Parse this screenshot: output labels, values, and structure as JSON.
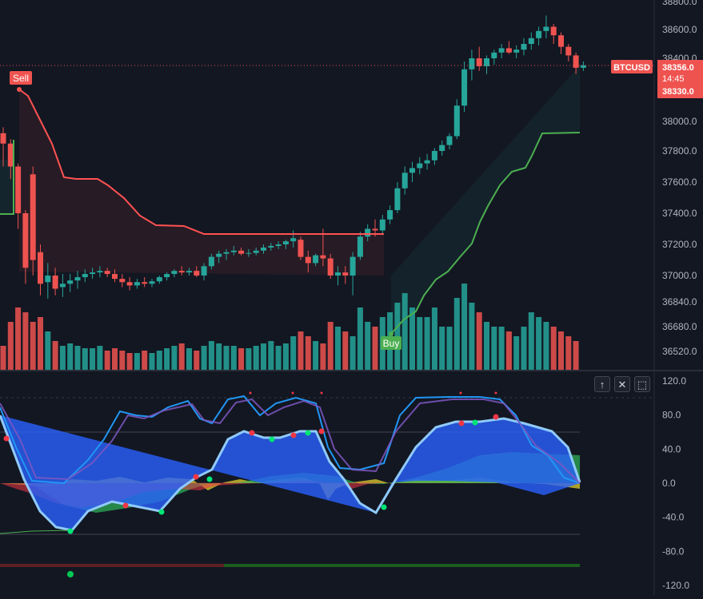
{
  "colors": {
    "background": "#131722",
    "grid": "#1e222d",
    "bull": "#26a69a",
    "bear": "#ef5350",
    "trail_down": "#ff5252",
    "trail_up": "#4caf50",
    "axis_text": "#b2b5be",
    "ind_blue": "#2962ff",
    "ind_light_blue": "#90caf9",
    "ind_purple": "#7e57c2",
    "ind_yellow": "#c9b92c",
    "ind_green": "#43d06a",
    "ind_red": "#f23645"
  },
  "price_axis": {
    "labels": [
      "38800.0",
      "38600.0",
      "38400.0",
      "38000.0",
      "37800.0",
      "37600.0",
      "37400.0",
      "37200.0",
      "37000.0",
      "36840.0",
      "36680.0",
      "36520.0"
    ],
    "values": [
      38800,
      38600,
      38400,
      38000,
      37800,
      37600,
      37400,
      37200,
      37000,
      36840,
      36680,
      36520
    ]
  },
  "indicator_axis": {
    "labels": [
      "120.0",
      "80.0",
      "40.0",
      "0.0",
      "-40.0",
      "-80.0",
      "-120.0"
    ],
    "values": [
      120,
      80,
      40,
      0,
      -40,
      -80,
      -120
    ]
  },
  "symbol_tag": "BTCUSD",
  "last_price": "38356.0",
  "countdown": "14:45",
  "secondary_price": "38330.0",
  "signals": {
    "sell": "Sell",
    "buy": "Buy"
  },
  "pane_buttons": {
    "up": "↑",
    "close": "✕",
    "maximize": "⬚"
  },
  "chart_data": {
    "type": "candlestick",
    "candles": [
      [
        37920,
        37960,
        37700,
        37850
      ],
      [
        37850,
        37880,
        37620,
        37700
      ],
      [
        37700,
        37720,
        37300,
        37400
      ],
      [
        37400,
        37420,
        36950,
        37050
      ],
      [
        37650,
        37700,
        37000,
        37100
      ],
      [
        37150,
        37200,
        36880,
        36950
      ],
      [
        36960,
        37080,
        36860,
        37000
      ],
      [
        37000,
        37050,
        36880,
        36920
      ],
      [
        36930,
        37010,
        36870,
        36950
      ],
      [
        36950,
        37010,
        36900,
        36970
      ],
      [
        36970,
        37030,
        36920,
        36990
      ],
      [
        36990,
        37040,
        36960,
        37010
      ],
      [
        37010,
        37050,
        36980,
        37020
      ],
      [
        37020,
        37060,
        36990,
        37030
      ],
      [
        37030,
        37050,
        36990,
        37010
      ],
      [
        37010,
        37040,
        36960,
        36980
      ],
      [
        36980,
        37010,
        36930,
        36960
      ],
      [
        36960,
        36990,
        36910,
        36940
      ],
      [
        36940,
        36980,
        36920,
        36960
      ],
      [
        36960,
        36990,
        36930,
        36950
      ],
      [
        36950,
        36980,
        36930,
        36965
      ],
      [
        36965,
        37000,
        36950,
        36990
      ],
      [
        36990,
        37020,
        36970,
        37010
      ],
      [
        37010,
        37040,
        36990,
        37030
      ],
      [
        37030,
        37060,
        37000,
        37020
      ],
      [
        37020,
        37050,
        37000,
        37030
      ],
      [
        37030,
        37060,
        36990,
        37000
      ],
      [
        37000,
        37080,
        36970,
        37060
      ],
      [
        37060,
        37140,
        37040,
        37120
      ],
      [
        37120,
        37160,
        37080,
        37140
      ],
      [
        37140,
        37170,
        37100,
        37150
      ],
      [
        37150,
        37190,
        37130,
        37160
      ],
      [
        37160,
        37180,
        37130,
        37140
      ],
      [
        37140,
        37170,
        37120,
        37145
      ],
      [
        37145,
        37180,
        37130,
        37160
      ],
      [
        37160,
        37200,
        37140,
        37180
      ],
      [
        37180,
        37210,
        37160,
        37190
      ],
      [
        37190,
        37220,
        37170,
        37200
      ],
      [
        37200,
        37230,
        37170,
        37220
      ],
      [
        37220,
        37290,
        37180,
        37240
      ],
      [
        37230,
        37250,
        37100,
        37120
      ],
      [
        37120,
        37160,
        37020,
        37080
      ],
      [
        37080,
        37140,
        37060,
        37130
      ],
      [
        37130,
        37300,
        37060,
        37110
      ],
      [
        37110,
        37140,
        36980,
        37000
      ],
      [
        37000,
        37060,
        36940,
        37020
      ],
      [
        37020,
        37060,
        36950,
        37000
      ],
      [
        37000,
        37150,
        36880,
        37120
      ],
      [
        37120,
        37280,
        37100,
        37250
      ],
      [
        37250,
        37330,
        37220,
        37300
      ],
      [
        37300,
        37360,
        37250,
        37290
      ],
      [
        37290,
        37390,
        37260,
        37360
      ],
      [
        37360,
        37450,
        37330,
        37420
      ],
      [
        37420,
        37600,
        37400,
        37560
      ],
      [
        37560,
        37700,
        37520,
        37660
      ],
      [
        37660,
        37730,
        37600,
        37690
      ],
      [
        37690,
        37760,
        37650,
        37720
      ],
      [
        37720,
        37780,
        37680,
        37740
      ],
      [
        37740,
        37820,
        37710,
        37800
      ],
      [
        37800,
        37870,
        37770,
        37840
      ],
      [
        37840,
        37920,
        37810,
        37900
      ],
      [
        37900,
        38140,
        37880,
        38100
      ],
      [
        38100,
        38380,
        38060,
        38330
      ],
      [
        38330,
        38460,
        38260,
        38400
      ],
      [
        38400,
        38480,
        38320,
        38350
      ],
      [
        38350,
        38420,
        38300,
        38400
      ],
      [
        38400,
        38460,
        38360,
        38440
      ],
      [
        38440,
        38500,
        38400,
        38470
      ],
      [
        38470,
        38520,
        38430,
        38440
      ],
      [
        38440,
        38490,
        38400,
        38460
      ],
      [
        38460,
        38540,
        38420,
        38500
      ],
      [
        38500,
        38580,
        38460,
        38540
      ],
      [
        38540,
        38620,
        38490,
        38590
      ],
      [
        38590,
        38700,
        38540,
        38620
      ],
      [
        38620,
        38640,
        38500,
        38560
      ],
      [
        38560,
        38580,
        38430,
        38480
      ],
      [
        38480,
        38500,
        38380,
        38420
      ],
      [
        38420,
        38440,
        38300,
        38340
      ],
      [
        38340,
        38380,
        38320,
        38356
      ]
    ],
    "volume": [
      10,
      20,
      26,
      24,
      20,
      22,
      16,
      12,
      10,
      11,
      10,
      9,
      9,
      10,
      8,
      9,
      8,
      7,
      7,
      8,
      7,
      8,
      9,
      10,
      11,
      9,
      8,
      10,
      12,
      11,
      10,
      10,
      9,
      9,
      10,
      11,
      12,
      10,
      11,
      14,
      16,
      14,
      12,
      11,
      20,
      18,
      16,
      14,
      26,
      20,
      18,
      22,
      24,
      28,
      32,
      26,
      22,
      22,
      26,
      18,
      18,
      30,
      36,
      28,
      24,
      20,
      18,
      18,
      16,
      14,
      18,
      24,
      22,
      20,
      18,
      16,
      14,
      12
    ],
    "volume_colors": [
      "bear",
      "bear",
      "bear",
      "bear",
      "bear",
      "bear",
      "bull",
      "bear",
      "bull",
      "bull",
      "bull",
      "bull",
      "bull",
      "bull",
      "bear",
      "bear",
      "bear",
      "bear",
      "bull",
      "bear",
      "bull",
      "bull",
      "bull",
      "bull",
      "bear",
      "bull",
      "bear",
      "bull",
      "bull",
      "bull",
      "bull",
      "bull",
      "bear",
      "bull",
      "bull",
      "bull",
      "bull",
      "bull",
      "bull",
      "bull",
      "bear",
      "bear",
      "bull",
      "bear",
      "bear",
      "bull",
      "bear",
      "bull",
      "bull",
      "bull",
      "bear",
      "bull",
      "bull",
      "bull",
      "bull",
      "bull",
      "bull",
      "bull",
      "bull",
      "bull",
      "bull",
      "bull",
      "bull",
      "bull",
      "bear",
      "bull",
      "bull",
      "bull",
      "bear",
      "bull",
      "bull",
      "bull",
      "bull",
      "bull",
      "bear",
      "bear",
      "bear",
      "bear"
    ]
  }
}
